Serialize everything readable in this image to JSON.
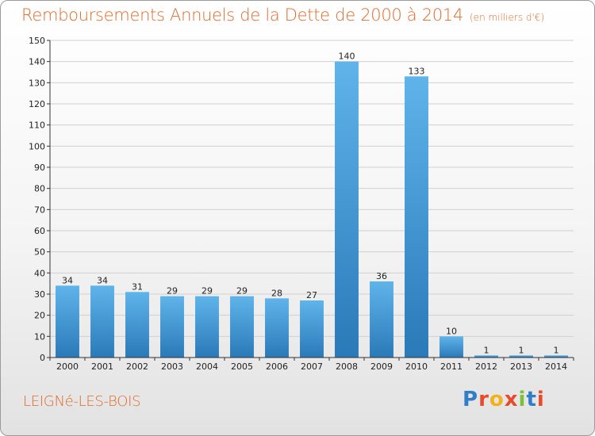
{
  "chart_title": "Remboursements Annuels de la Dette de 2000 à 2014",
  "chart_subtitle": "(en milliers d'€)",
  "commune": "LEIGNé-LES-BOIS",
  "logo": {
    "letters": [
      "P",
      "r",
      "o",
      "x",
      "i",
      "t",
      "i"
    ],
    "colors": [
      "#2f7ec7",
      "#e84b2a",
      "#f1b21a",
      "#e84b2a",
      "#7cbf3a",
      "#2f7ec7",
      "#e84b2a"
    ]
  },
  "colors": {
    "title": "#e06a2a",
    "bar_top": "#5fb4ea",
    "bar_bottom": "#2a79b8",
    "grid": "#d0d0d0"
  },
  "chart_data": {
    "type": "bar",
    "title": "Remboursements Annuels de la Dette de 2000 à 2014",
    "subtitle": "(en milliers d'€)",
    "xlabel": "",
    "ylabel": "",
    "categories": [
      "2000",
      "2001",
      "2002",
      "2003",
      "2004",
      "2005",
      "2006",
      "2007",
      "2008",
      "2009",
      "2010",
      "2011",
      "2012",
      "2013",
      "2014"
    ],
    "values": [
      34,
      34,
      31,
      29,
      29,
      29,
      28,
      27,
      140,
      36,
      133,
      10,
      1,
      1,
      1
    ],
    "ylim": [
      0,
      150
    ],
    "yticks": [
      0,
      10,
      20,
      30,
      40,
      50,
      60,
      70,
      80,
      90,
      100,
      110,
      120,
      130,
      140,
      150
    ],
    "grid": true,
    "legend": "none"
  }
}
